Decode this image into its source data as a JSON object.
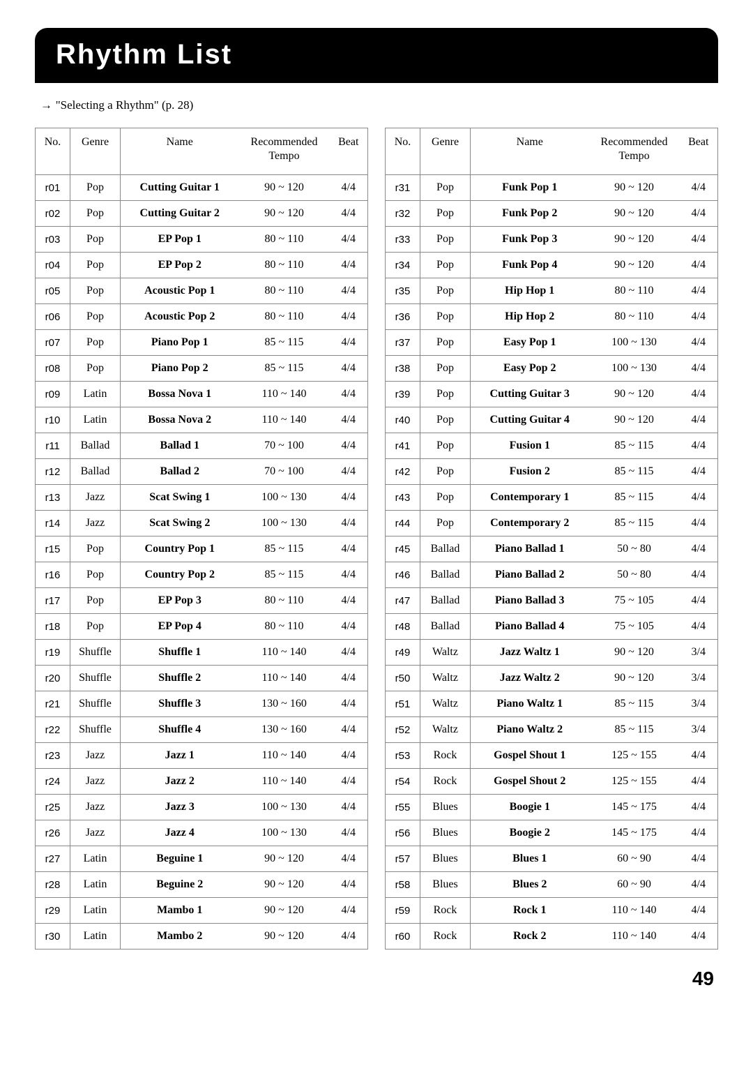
{
  "title": "Rhythm List",
  "reference": "\"Selecting a Rhythm\" (p. 28)",
  "page_number": "49",
  "headers": {
    "no": "No.",
    "genre": "Genre",
    "name": "Name",
    "tempo": "Recommended Tempo",
    "beat": "Beat"
  },
  "left_rows": [
    {
      "no": "r01",
      "genre": "Pop",
      "name": "Cutting Guitar 1",
      "tempo": "90 ~ 120",
      "beat": "4/4"
    },
    {
      "no": "r02",
      "genre": "Pop",
      "name": "Cutting Guitar 2",
      "tempo": "90 ~ 120",
      "beat": "4/4"
    },
    {
      "no": "r03",
      "genre": "Pop",
      "name": "EP Pop 1",
      "tempo": "80 ~ 110",
      "beat": "4/4"
    },
    {
      "no": "r04",
      "genre": "Pop",
      "name": "EP Pop 2",
      "tempo": "80 ~ 110",
      "beat": "4/4"
    },
    {
      "no": "r05",
      "genre": "Pop",
      "name": "Acoustic Pop 1",
      "tempo": "80 ~ 110",
      "beat": "4/4"
    },
    {
      "no": "r06",
      "genre": "Pop",
      "name": "Acoustic Pop 2",
      "tempo": "80 ~ 110",
      "beat": "4/4"
    },
    {
      "no": "r07",
      "genre": "Pop",
      "name": "Piano Pop 1",
      "tempo": "85 ~ 115",
      "beat": "4/4"
    },
    {
      "no": "r08",
      "genre": "Pop",
      "name": "Piano Pop 2",
      "tempo": "85 ~ 115",
      "beat": "4/4"
    },
    {
      "no": "r09",
      "genre": "Latin",
      "name": "Bossa Nova 1",
      "tempo": "110 ~ 140",
      "beat": "4/4"
    },
    {
      "no": "r10",
      "genre": "Latin",
      "name": "Bossa Nova 2",
      "tempo": "110 ~ 140",
      "beat": "4/4"
    },
    {
      "no": "r11",
      "genre": "Ballad",
      "name": "Ballad 1",
      "tempo": "70 ~ 100",
      "beat": "4/4"
    },
    {
      "no": "r12",
      "genre": "Ballad",
      "name": "Ballad 2",
      "tempo": "70 ~ 100",
      "beat": "4/4"
    },
    {
      "no": "r13",
      "genre": "Jazz",
      "name": "Scat Swing 1",
      "tempo": "100 ~ 130",
      "beat": "4/4"
    },
    {
      "no": "r14",
      "genre": "Jazz",
      "name": "Scat Swing 2",
      "tempo": "100 ~ 130",
      "beat": "4/4"
    },
    {
      "no": "r15",
      "genre": "Pop",
      "name": "Country Pop 1",
      "tempo": "85 ~ 115",
      "beat": "4/4"
    },
    {
      "no": "r16",
      "genre": "Pop",
      "name": "Country Pop 2",
      "tempo": "85 ~ 115",
      "beat": "4/4"
    },
    {
      "no": "r17",
      "genre": "Pop",
      "name": "EP Pop 3",
      "tempo": "80 ~ 110",
      "beat": "4/4"
    },
    {
      "no": "r18",
      "genre": "Pop",
      "name": "EP Pop 4",
      "tempo": "80 ~ 110",
      "beat": "4/4"
    },
    {
      "no": "r19",
      "genre": "Shuffle",
      "name": "Shuffle 1",
      "tempo": "110 ~ 140",
      "beat": "4/4"
    },
    {
      "no": "r20",
      "genre": "Shuffle",
      "name": "Shuffle 2",
      "tempo": "110 ~ 140",
      "beat": "4/4"
    },
    {
      "no": "r21",
      "genre": "Shuffle",
      "name": "Shuffle 3",
      "tempo": "130 ~ 160",
      "beat": "4/4"
    },
    {
      "no": "r22",
      "genre": "Shuffle",
      "name": "Shuffle 4",
      "tempo": "130 ~ 160",
      "beat": "4/4"
    },
    {
      "no": "r23",
      "genre": "Jazz",
      "name": "Jazz 1",
      "tempo": "110 ~ 140",
      "beat": "4/4"
    },
    {
      "no": "r24",
      "genre": "Jazz",
      "name": "Jazz 2",
      "tempo": "110 ~ 140",
      "beat": "4/4"
    },
    {
      "no": "r25",
      "genre": "Jazz",
      "name": "Jazz 3",
      "tempo": "100 ~ 130",
      "beat": "4/4"
    },
    {
      "no": "r26",
      "genre": "Jazz",
      "name": "Jazz 4",
      "tempo": "100 ~ 130",
      "beat": "4/4"
    },
    {
      "no": "r27",
      "genre": "Latin",
      "name": "Beguine 1",
      "tempo": "90 ~ 120",
      "beat": "4/4"
    },
    {
      "no": "r28",
      "genre": "Latin",
      "name": "Beguine 2",
      "tempo": "90 ~ 120",
      "beat": "4/4"
    },
    {
      "no": "r29",
      "genre": "Latin",
      "name": "Mambo 1",
      "tempo": "90 ~ 120",
      "beat": "4/4"
    },
    {
      "no": "r30",
      "genre": "Latin",
      "name": "Mambo 2",
      "tempo": "90 ~ 120",
      "beat": "4/4"
    }
  ],
  "right_rows": [
    {
      "no": "r31",
      "genre": "Pop",
      "name": "Funk Pop 1",
      "tempo": "90 ~ 120",
      "beat": "4/4"
    },
    {
      "no": "r32",
      "genre": "Pop",
      "name": "Funk Pop 2",
      "tempo": "90 ~ 120",
      "beat": "4/4"
    },
    {
      "no": "r33",
      "genre": "Pop",
      "name": "Funk Pop 3",
      "tempo": "90 ~ 120",
      "beat": "4/4"
    },
    {
      "no": "r34",
      "genre": "Pop",
      "name": "Funk Pop 4",
      "tempo": "90 ~ 120",
      "beat": "4/4"
    },
    {
      "no": "r35",
      "genre": "Pop",
      "name": "Hip Hop 1",
      "tempo": "80 ~ 110",
      "beat": "4/4"
    },
    {
      "no": "r36",
      "genre": "Pop",
      "name": "Hip Hop 2",
      "tempo": "80 ~ 110",
      "beat": "4/4"
    },
    {
      "no": "r37",
      "genre": "Pop",
      "name": "Easy Pop 1",
      "tempo": "100 ~ 130",
      "beat": "4/4"
    },
    {
      "no": "r38",
      "genre": "Pop",
      "name": "Easy Pop 2",
      "tempo": "100 ~ 130",
      "beat": "4/4"
    },
    {
      "no": "r39",
      "genre": "Pop",
      "name": "Cutting Guitar 3",
      "tempo": "90 ~ 120",
      "beat": "4/4"
    },
    {
      "no": "r40",
      "genre": "Pop",
      "name": "Cutting Guitar 4",
      "tempo": "90 ~ 120",
      "beat": "4/4"
    },
    {
      "no": "r41",
      "genre": "Pop",
      "name": "Fusion 1",
      "tempo": "85 ~ 115",
      "beat": "4/4"
    },
    {
      "no": "r42",
      "genre": "Pop",
      "name": "Fusion 2",
      "tempo": "85 ~ 115",
      "beat": "4/4"
    },
    {
      "no": "r43",
      "genre": "Pop",
      "name": "Contemporary 1",
      "tempo": "85 ~ 115",
      "beat": "4/4"
    },
    {
      "no": "r44",
      "genre": "Pop",
      "name": "Contemporary 2",
      "tempo": "85 ~ 115",
      "beat": "4/4"
    },
    {
      "no": "r45",
      "genre": "Ballad",
      "name": "Piano Ballad 1",
      "tempo": "50 ~ 80",
      "beat": "4/4"
    },
    {
      "no": "r46",
      "genre": "Ballad",
      "name": "Piano Ballad 2",
      "tempo": "50 ~ 80",
      "beat": "4/4"
    },
    {
      "no": "r47",
      "genre": "Ballad",
      "name": "Piano Ballad 3",
      "tempo": "75 ~ 105",
      "beat": "4/4"
    },
    {
      "no": "r48",
      "genre": "Ballad",
      "name": "Piano Ballad 4",
      "tempo": "75 ~ 105",
      "beat": "4/4"
    },
    {
      "no": "r49",
      "genre": "Waltz",
      "name": "Jazz Waltz 1",
      "tempo": "90 ~ 120",
      "beat": "3/4"
    },
    {
      "no": "r50",
      "genre": "Waltz",
      "name": "Jazz Waltz 2",
      "tempo": "90 ~ 120",
      "beat": "3/4"
    },
    {
      "no": "r51",
      "genre": "Waltz",
      "name": "Piano Waltz 1",
      "tempo": "85 ~ 115",
      "beat": "3/4"
    },
    {
      "no": "r52",
      "genre": "Waltz",
      "name": "Piano Waltz 2",
      "tempo": "85 ~ 115",
      "beat": "3/4"
    },
    {
      "no": "r53",
      "genre": "Rock",
      "name": "Gospel Shout 1",
      "tempo": "125 ~ 155",
      "beat": "4/4"
    },
    {
      "no": "r54",
      "genre": "Rock",
      "name": "Gospel Shout 2",
      "tempo": "125 ~ 155",
      "beat": "4/4"
    },
    {
      "no": "r55",
      "genre": "Blues",
      "name": "Boogie 1",
      "tempo": "145 ~ 175",
      "beat": "4/4"
    },
    {
      "no": "r56",
      "genre": "Blues",
      "name": "Boogie 2",
      "tempo": "145 ~ 175",
      "beat": "4/4"
    },
    {
      "no": "r57",
      "genre": "Blues",
      "name": "Blues 1",
      "tempo": "60 ~ 90",
      "beat": "4/4"
    },
    {
      "no": "r58",
      "genre": "Blues",
      "name": "Blues 2",
      "tempo": "60 ~ 90",
      "beat": "4/4"
    },
    {
      "no": "r59",
      "genre": "Rock",
      "name": "Rock 1",
      "tempo": "110 ~ 140",
      "beat": "4/4"
    },
    {
      "no": "r60",
      "genre": "Rock",
      "name": "Rock 2",
      "tempo": "110 ~ 140",
      "beat": "4/4"
    }
  ],
  "style": {
    "title_bg": "#000000",
    "title_color": "#ffffff",
    "border_color": "#888888",
    "font_body": "Palatino Linotype",
    "font_title": "Arial"
  }
}
